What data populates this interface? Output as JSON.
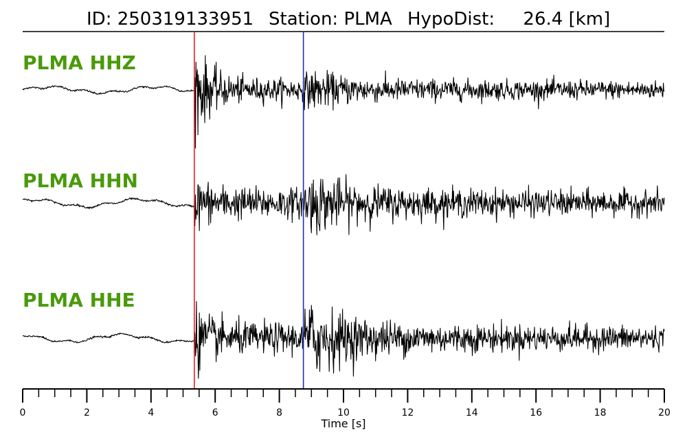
{
  "title": {
    "id_text": "ID: 250319133951",
    "station_text": "Station: PLMA",
    "hypodist_text": "HypoDist:     26.4 [km]"
  },
  "chart_data": {
    "type": "line",
    "xlabel": "Time [s]",
    "xlim": [
      0,
      20
    ],
    "major_ticks": [
      0,
      2,
      4,
      6,
      8,
      10,
      12,
      14,
      16,
      18,
      20
    ],
    "minor_tick_step": 0.5,
    "p_pick_time": 5.35,
    "s_pick_time": 8.75,
    "p_pick_color": "#e8201e",
    "s_pick_color": "#1a2fb5",
    "label_color": "#4a9a0c",
    "trace_color": "#000000",
    "series": [
      {
        "name": "PLMA HHZ",
        "noise_level": 0.05,
        "p_amplitude": 1.0,
        "s_amplitude": 0.45,
        "coda_amplitude": 0.22
      },
      {
        "name": "PLMA HHN",
        "noise_level": 0.06,
        "p_amplitude": 0.55,
        "s_amplitude": 0.75,
        "coda_amplitude": 0.3
      },
      {
        "name": "PLMA HHE",
        "noise_level": 0.06,
        "p_amplitude": 0.7,
        "s_amplitude": 0.95,
        "coda_amplitude": 0.3
      }
    ]
  }
}
